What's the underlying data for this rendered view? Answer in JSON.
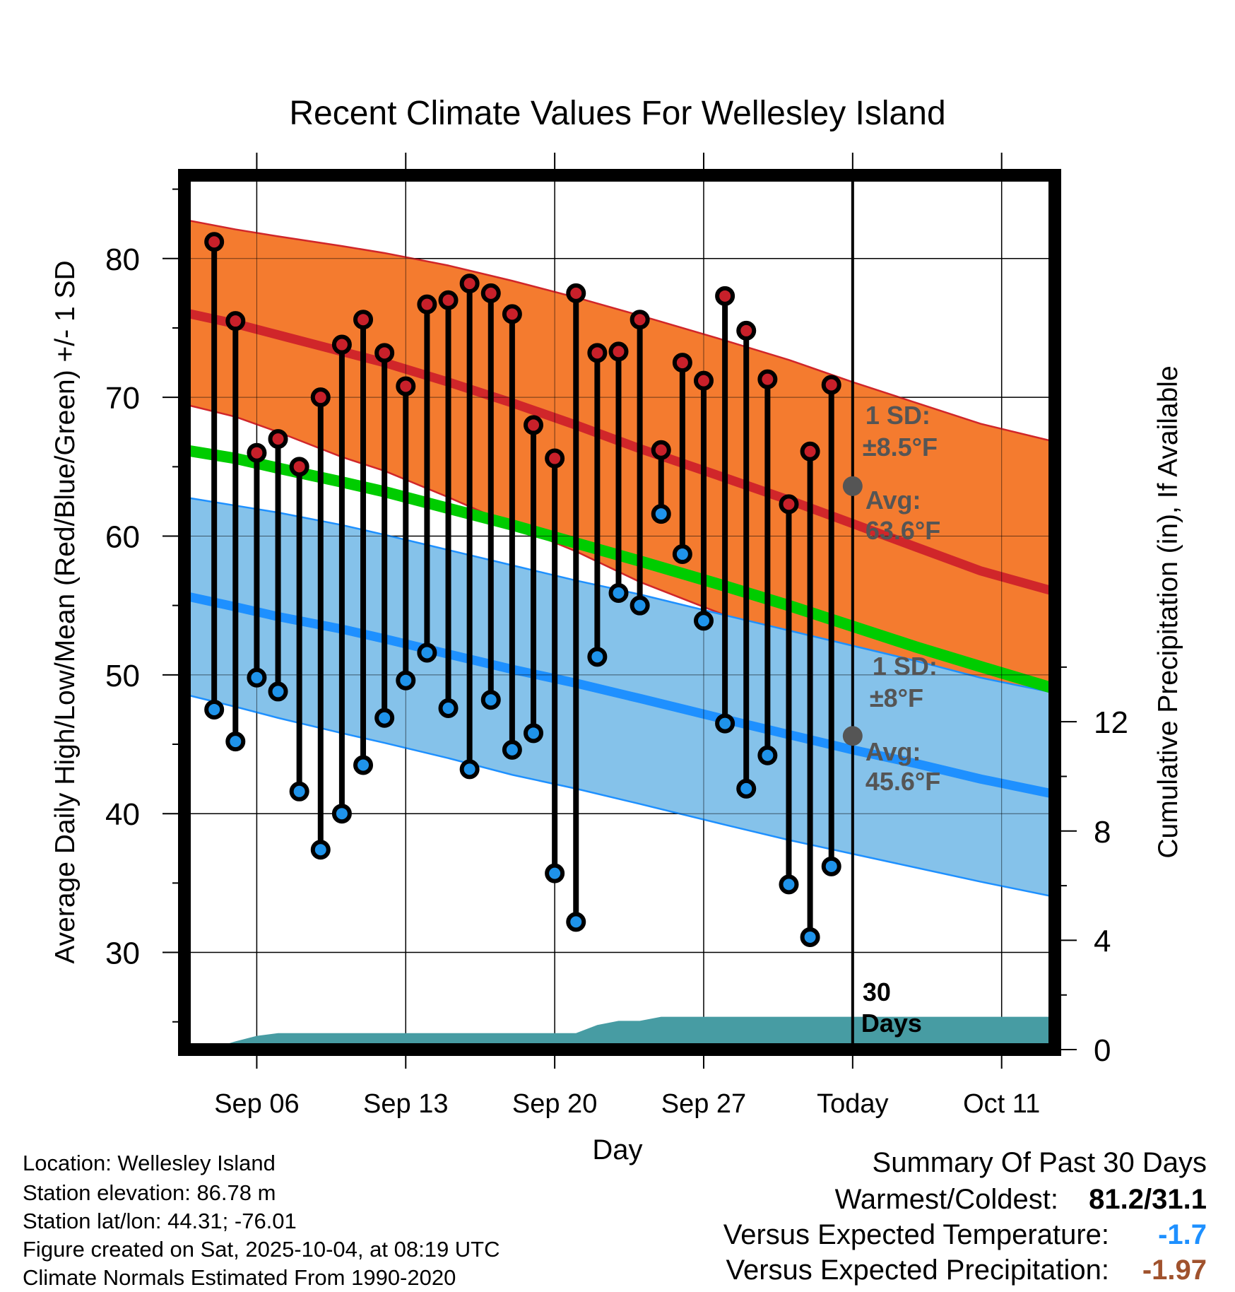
{
  "colors": {
    "high_band": "#f47b2f",
    "high_line": "#d0262a",
    "low_band": "#85c2ea",
    "low_line": "#1e90ff",
    "mean_line": "#00cc00",
    "precip_fill": "#479ca3",
    "high_dot": "#c8202a",
    "low_dot": "#1f93ea",
    "avg_marker": "#555555",
    "frame": "#000000",
    "summary_temp": "#1e90ff",
    "summary_precip": "#a0522d"
  },
  "chart_data": {
    "type": "climate-bars",
    "title": "Recent Climate Values For Wellesley Island",
    "xlabel": "Day",
    "ylabel_left": "Average Daily High/Low/Mean (Red/Blue/Green) +/- 1 SD",
    "ylabel_right": "Cumulative Precipitation (in), If Available",
    "xlim": [
      0.6,
      41.5
    ],
    "ylim_left": [
      23,
      86
    ],
    "ylim_right": [
      0,
      32
    ],
    "x_ticks": [
      {
        "x": 4,
        "label": "Sep 06"
      },
      {
        "x": 11,
        "label": "Sep 13"
      },
      {
        "x": 18,
        "label": "Sep 20"
      },
      {
        "x": 25,
        "label": "Sep 27"
      },
      {
        "x": 32,
        "label": "Today"
      },
      {
        "x": 39,
        "label": "Oct 11"
      }
    ],
    "y_ticks_left": [
      30,
      40,
      50,
      60,
      70,
      80
    ],
    "y_ticks_right": [
      0,
      4,
      8,
      12
    ],
    "today_x": 32,
    "normals": {
      "x": [
        0.6,
        3,
        5,
        8,
        10,
        13,
        16,
        19,
        22,
        26,
        29,
        32,
        35,
        38,
        41.5
      ],
      "high_avg": [
        76.1,
        75.3,
        74.5,
        73.3,
        72.5,
        71.1,
        69.6,
        68.0,
        66.3,
        64.2,
        62.6,
        60.9,
        59.2,
        57.5,
        56.0
      ],
      "high_sd_upper": [
        82.8,
        82.1,
        81.6,
        80.9,
        80.4,
        79.5,
        78.4,
        77.2,
        75.9,
        74.1,
        72.7,
        71.1,
        69.6,
        68.1,
        66.8
      ],
      "high_sd_lower": [
        69.5,
        68.6,
        67.5,
        65.7,
        64.7,
        62.8,
        60.8,
        58.9,
        56.7,
        54.3,
        52.6,
        50.8,
        49.0,
        47.3,
        45.4
      ],
      "low_avg": [
        55.7,
        54.9,
        54.2,
        53.3,
        52.6,
        51.5,
        50.4,
        49.4,
        48.3,
        46.8,
        45.7,
        44.6,
        43.6,
        42.5,
        41.4
      ],
      "low_sd_upper": [
        62.8,
        62.2,
        61.7,
        60.8,
        60.1,
        59.0,
        57.9,
        56.8,
        55.8,
        54.3,
        53.2,
        52.1,
        51.0,
        49.8,
        48.7
      ],
      "low_sd_lower": [
        48.6,
        47.7,
        46.9,
        45.8,
        45.1,
        44.0,
        42.8,
        41.8,
        40.7,
        39.2,
        38.1,
        37.1,
        36.1,
        35.1,
        34.0
      ],
      "mean": [
        66.2,
        65.6,
        64.9,
        63.9,
        63.2,
        62.0,
        60.8,
        59.5,
        58.2,
        56.4,
        55.0,
        53.5,
        52.0,
        50.6,
        49.0
      ]
    },
    "days": {
      "x": [
        2,
        3,
        4,
        5,
        6,
        7,
        8,
        9,
        10,
        11,
        12,
        13,
        14,
        15,
        16,
        17,
        18,
        19,
        20,
        21,
        22,
        23,
        24,
        25,
        26,
        27,
        28,
        29,
        30,
        31
      ],
      "high": [
        81.2,
        75.5,
        66.0,
        67.0,
        65.0,
        70.0,
        73.8,
        75.6,
        73.2,
        70.8,
        76.7,
        77.0,
        78.2,
        77.5,
        76.0,
        68.0,
        65.6,
        77.5,
        73.2,
        73.3,
        75.6,
        66.2,
        72.5,
        71.2,
        77.3,
        74.8,
        71.3,
        62.3,
        66.1,
        70.9
      ],
      "low": [
        47.5,
        45.2,
        49.8,
        48.8,
        41.6,
        37.4,
        40.0,
        43.5,
        46.9,
        49.6,
        51.6,
        47.6,
        43.2,
        48.2,
        44.6,
        45.8,
        35.7,
        32.2,
        51.3,
        55.9,
        55.0,
        61.6,
        58.7,
        53.9,
        46.5,
        41.8,
        44.2,
        34.9,
        31.1,
        36.2
      ]
    },
    "precip": {
      "x": [
        1.7,
        3,
        4,
        5,
        17,
        18,
        19,
        20,
        21,
        22,
        23,
        24,
        41.5
      ],
      "values": [
        0,
        0.3,
        0.5,
        0.6,
        0.6,
        0.6,
        0.6,
        0.9,
        1.05,
        1.05,
        1.2,
        1.2,
        1.2
      ]
    },
    "annotations": {
      "high_sd": "1 SD:",
      "high_sd_value": "±8.5°F",
      "high_avg": "Avg:",
      "high_avg_value": "63.6°F",
      "high_avg_today": 63.6,
      "low_sd": "1 SD:",
      "low_sd_value": "±8°F",
      "low_avg": "Avg:",
      "low_avg_value": "45.6°F",
      "low_avg_today": 45.6,
      "days_count": "30",
      "days_label": "Days"
    }
  },
  "footer": {
    "location": "Location: Wellesley Island",
    "elevation": "Station elevation: 86.78 m",
    "latlon": "Station lat/lon: 44.31; -76.01",
    "created": "Figure created on Sat, 2025-10-04, at 08:19 UTC",
    "normals": "Climate Normals Estimated From 1990-2020"
  },
  "summary": {
    "title": "Summary Of Past 30 Days",
    "warm_cold_label": "Warmest/Coldest:",
    "warm_cold_value": "81.2/31.1",
    "temp_label": "Versus Expected Temperature:",
    "temp_value": "-1.7",
    "precip_label": "Versus Expected Precipitation:",
    "precip_value": "-1.97"
  }
}
